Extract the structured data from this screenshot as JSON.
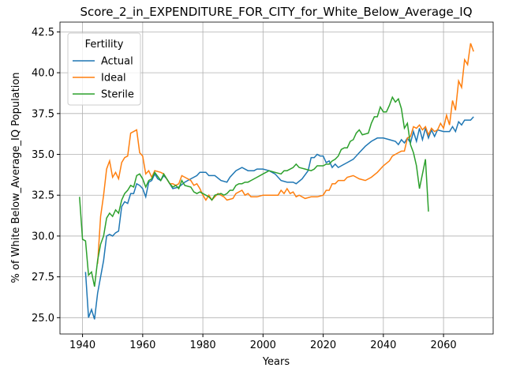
{
  "chart_data": {
    "type": "line",
    "title": "Score_2_in_EXPENDITURE_FOR_CITY_for_White_Below_Average_IQ",
    "xlabel": "Years",
    "ylabel": "% of White Below_Average_IQ Population",
    "xlim": [
      1932.5,
      2076.5
    ],
    "ylim": [
      24,
      43.1
    ],
    "xticks": [
      1940,
      1960,
      1980,
      2000,
      2020,
      2040,
      2060
    ],
    "yticks": [
      {
        "value": 25,
        "label": "25.0"
      },
      27.5,
      {
        "value": 30,
        "label": "30.0"
      },
      32.5,
      {
        "value": 35,
        "label": "35.0"
      },
      37.5,
      {
        "value": 40,
        "label": "40.0"
      },
      42.5
    ],
    "grid": true,
    "legend_title": "Fertility",
    "legend_loc": "upper left",
    "series": [
      {
        "name": "Actual",
        "color": "#1f77b4",
        "x": [
          1941,
          1942,
          1943,
          1944,
          1945,
          1946,
          1947,
          1948,
          1949,
          1950,
          1951,
          1952,
          1953,
          1954,
          1955,
          1956,
          1957,
          1958,
          1959,
          1960,
          1961,
          1962,
          1963,
          1964,
          1965,
          1966,
          1967,
          1968,
          1969,
          1970,
          1972,
          1974,
          1976,
          1978,
          1979,
          1981,
          1982,
          1984,
          1986,
          1988,
          1989,
          1991,
          1993,
          1995,
          1997,
          1998,
          2000,
          2002,
          2004,
          2006,
          2008,
          2010,
          2011,
          2013,
          2015,
          2016,
          2017,
          2018,
          2019,
          2020,
          2021,
          2022,
          2023,
          2024,
          2025,
          2026,
          2028,
          2030,
          2032,
          2034,
          2036,
          2038,
          2040,
          2042,
          2044,
          2045,
          2046,
          2047,
          2048,
          2049,
          2050,
          2051,
          2052,
          2053,
          2054,
          2055,
          2056,
          2057,
          2058,
          2060,
          2062,
          2063,
          2064,
          2065,
          2066,
          2067,
          2069,
          2070
        ],
        "values": [
          27.8,
          25.0,
          25.5,
          24.9,
          26.5,
          27.5,
          28.5,
          30.0,
          30.1,
          30.0,
          30.2,
          30.3,
          31.8,
          32.1,
          32.0,
          32.6,
          32.6,
          33.2,
          33.1,
          32.9,
          32.4,
          33.3,
          33.4,
          33.8,
          33.5,
          33.4,
          33.7,
          33.5,
          33.2,
          32.9,
          33.0,
          33.3,
          33.5,
          33.7,
          33.9,
          33.9,
          33.7,
          33.7,
          33.4,
          33.3,
          33.6,
          34.0,
          34.2,
          34.0,
          34.0,
          34.1,
          34.1,
          34.0,
          33.8,
          33.4,
          33.3,
          33.3,
          33.2,
          33.5,
          34.0,
          34.8,
          34.8,
          35.0,
          34.9,
          34.9,
          34.5,
          34.6,
          34.2,
          34.4,
          34.2,
          34.3,
          34.5,
          34.7,
          35.1,
          35.5,
          35.8,
          36.0,
          36.0,
          35.9,
          35.8,
          35.6,
          35.9,
          35.7,
          36.0,
          35.7,
          36.4,
          35.8,
          36.6,
          35.9,
          36.6,
          36.0,
          36.5,
          36.1,
          36.5,
          36.4,
          36.4,
          36.7,
          36.4,
          37.0,
          36.8,
          37.1,
          37.1,
          37.3
        ]
      },
      {
        "name": "Ideal",
        "color": "#ff7f0e",
        "x": [
          1945,
          1946,
          1947,
          1948,
          1949,
          1950,
          1951,
          1952,
          1953,
          1954,
          1955,
          1956,
          1957,
          1958,
          1959,
          1960,
          1961,
          1962,
          1963,
          1964,
          1966,
          1967,
          1968,
          1969,
          1970,
          1971,
          1972,
          1973,
          1975,
          1976,
          1977,
          1978,
          1979,
          1980,
          1981,
          1982,
          1983,
          1984,
          1985,
          1986,
          1987,
          1988,
          1990,
          1991,
          1993,
          1994,
          1995,
          1996,
          1998,
          2000,
          2002,
          2004,
          2005,
          2006,
          2007,
          2008,
          2009,
          2010,
          2011,
          2012,
          2014,
          2016,
          2018,
          2020,
          2021,
          2022,
          2023,
          2024,
          2025,
          2027,
          2028,
          2030,
          2032,
          2034,
          2036,
          2038,
          2040,
          2042,
          2043,
          2045,
          2046,
          2047,
          2048,
          2049,
          2050,
          2051,
          2052,
          2053,
          2054,
          2055,
          2056,
          2057,
          2058,
          2059,
          2060,
          2061,
          2062,
          2063,
          2064,
          2065,
          2066,
          2067,
          2068,
          2069,
          2070
        ],
        "values": [
          28.3,
          31.2,
          32.5,
          34.1,
          34.6,
          33.6,
          33.9,
          33.5,
          34.5,
          34.8,
          34.9,
          36.3,
          36.4,
          36.5,
          35.1,
          34.9,
          33.8,
          34.0,
          33.6,
          34.0,
          33.9,
          33.8,
          33.5,
          33.2,
          33.2,
          33.1,
          33.2,
          33.7,
          33.5,
          33.4,
          33.1,
          33.2,
          32.9,
          32.5,
          32.2,
          32.5,
          32.2,
          32.4,
          32.6,
          32.5,
          32.4,
          32.2,
          32.3,
          32.6,
          32.8,
          32.5,
          32.6,
          32.4,
          32.4,
          32.5,
          32.5,
          32.5,
          32.5,
          32.8,
          32.6,
          32.9,
          32.6,
          32.7,
          32.4,
          32.5,
          32.3,
          32.4,
          32.4,
          32.5,
          32.8,
          32.8,
          33.2,
          33.2,
          33.4,
          33.4,
          33.6,
          33.7,
          33.5,
          33.4,
          33.6,
          33.9,
          34.3,
          34.6,
          34.9,
          35.1,
          35.2,
          35.2,
          36.0,
          36.1,
          36.7,
          36.6,
          36.8,
          36.5,
          36.7,
          36.2,
          36.6,
          36.4,
          36.5,
          36.9,
          36.6,
          37.4,
          36.8,
          38.3,
          37.7,
          39.5,
          39.1,
          40.8,
          40.5,
          41.8,
          41.3
        ]
      },
      {
        "name": "Sterile",
        "color": "#2ca02c",
        "x": [
          1939,
          1940,
          1941,
          1942,
          1943,
          1944,
          1945,
          1946,
          1947,
          1948,
          1949,
          1950,
          1951,
          1952,
          1953,
          1954,
          1955,
          1956,
          1957,
          1958,
          1959,
          1960,
          1961,
          1962,
          1963,
          1964,
          1966,
          1967,
          1968,
          1969,
          1970,
          1971,
          1972,
          1973,
          1974,
          1976,
          1977,
          1978,
          1979,
          1980,
          1982,
          1983,
          1984,
          1986,
          1987,
          1988,
          1989,
          1990,
          1991,
          1992,
          1993,
          1994,
          1995,
          1996,
          1998,
          2000,
          2002,
          2004,
          2006,
          2007,
          2008,
          2010,
          2011,
          2012,
          2014,
          2016,
          2017,
          2018,
          2020,
          2021,
          2022,
          2023,
          2024,
          2025,
          2026,
          2027,
          2028,
          2029,
          2030,
          2031,
          2032,
          2033,
          2035,
          2036,
          2037,
          2038,
          2039,
          2040,
          2041,
          2042,
          2043,
          2044,
          2045,
          2046,
          2047,
          2048,
          2049,
          2050,
          2051,
          2052,
          2053,
          2054,
          2055
        ],
        "values": [
          32.4,
          29.8,
          29.7,
          27.6,
          27.8,
          26.9,
          28.5,
          29.5,
          30.0,
          31.1,
          31.4,
          31.2,
          31.6,
          31.4,
          32.2,
          32.6,
          32.8,
          33.1,
          33.0,
          33.7,
          33.8,
          33.5,
          33.0,
          33.4,
          33.5,
          33.9,
          33.4,
          33.8,
          33.5,
          33.2,
          33.0,
          33.1,
          32.9,
          33.4,
          33.1,
          33.0,
          32.7,
          32.6,
          32.7,
          32.6,
          32.4,
          32.2,
          32.5,
          32.6,
          32.5,
          32.6,
          32.8,
          32.8,
          33.1,
          33.2,
          33.2,
          33.3,
          33.3,
          33.4,
          33.6,
          33.8,
          34.0,
          33.9,
          33.8,
          34.0,
          34.0,
          34.2,
          34.4,
          34.2,
          34.1,
          34.0,
          34.1,
          34.3,
          34.3,
          34.4,
          34.4,
          34.6,
          34.7,
          34.9,
          35.3,
          35.4,
          35.4,
          35.8,
          35.9,
          36.3,
          36.5,
          36.2,
          36.3,
          36.9,
          37.3,
          37.3,
          37.9,
          37.6,
          37.6,
          38.0,
          38.5,
          38.2,
          38.4,
          37.8,
          36.6,
          36.9,
          35.6,
          35.1,
          34.3,
          32.9,
          33.8,
          34.7,
          31.5
        ]
      }
    ]
  }
}
